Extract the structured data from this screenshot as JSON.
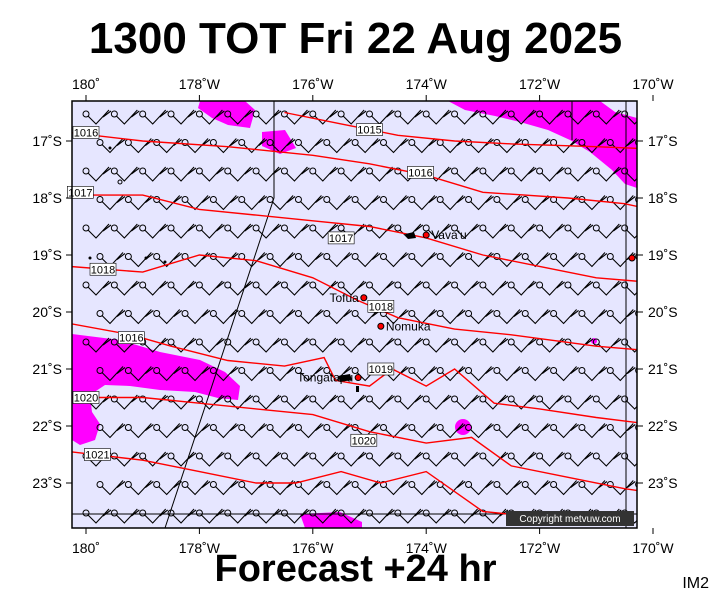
{
  "title": "1300 TOT Fri 22 Aug 2025",
  "subtitle": "Forecast +24 hr",
  "corner_code": "IM2",
  "copyright": "Copyright metvuw.com",
  "colors": {
    "background": "#e6e6ff",
    "rain": "#ff00ff",
    "isobar": "#ff0000",
    "frame": "#000000"
  },
  "axes": {
    "lon_ticks": [
      {
        "lon": -180,
        "label": "180˚"
      },
      {
        "lon": -178,
        "label": "178˚W"
      },
      {
        "lon": -176,
        "label": "176˚W"
      },
      {
        "lon": -174,
        "label": "174˚W"
      },
      {
        "lon": -172,
        "label": "172˚W"
      },
      {
        "lon": -170,
        "label": "170˚W"
      }
    ],
    "lat_ticks": [
      {
        "lat": -17,
        "label": "17˚S"
      },
      {
        "lat": -18,
        "label": "18˚S"
      },
      {
        "lat": -19,
        "label": "19˚S"
      },
      {
        "lat": -20,
        "label": "20˚S"
      },
      {
        "lat": -21,
        "label": "21˚S"
      },
      {
        "lat": -22,
        "label": "22˚S"
      },
      {
        "lat": -23,
        "label": "23˚S"
      }
    ]
  },
  "places": [
    {
      "name": "Vava'u",
      "lon": -174.0,
      "lat": -18.65
    },
    {
      "name": "Tofua",
      "lon": -175.1,
      "lat": -19.75
    },
    {
      "name": "Nomuka",
      "lon": -174.8,
      "lat": -20.25
    },
    {
      "name": "Tongatapu",
      "lon": -175.2,
      "lat": -21.15
    }
  ],
  "isobars": [
    {
      "label": "1015",
      "label_lon": -175.0,
      "label_lat": -16.8,
      "points": [
        [
          -176.5,
          -16.5
        ],
        [
          -175.5,
          -16.7
        ],
        [
          -174.5,
          -16.9
        ],
        [
          -173.5,
          -17.0
        ],
        [
          -172.5,
          -17.05
        ],
        [
          -171.0,
          -17.1
        ],
        [
          -169.8,
          -17.15
        ]
      ]
    },
    {
      "label": "1016",
      "label_lon": -180.0,
      "label_lat": -16.85,
      "points": [
        [
          -180.3,
          -16.85
        ],
        [
          -179.0,
          -17.0
        ],
        [
          -177.5,
          -17.1
        ],
        [
          -176.0,
          -17.25
        ],
        [
          -175.0,
          -17.4
        ],
        [
          -174.0,
          -17.6
        ],
        [
          -173.0,
          -17.9
        ],
        [
          -171.5,
          -18.0
        ],
        [
          -170.5,
          -18.1
        ],
        [
          -169.8,
          -18.25
        ]
      ]
    },
    {
      "label": "1016",
      "label_lon": -174.1,
      "label_lat": -17.55,
      "points": []
    },
    {
      "label": "1017",
      "label_lon": -180.1,
      "label_lat": -17.9,
      "points": [
        [
          -180.3,
          -17.95
        ],
        [
          -179.0,
          -17.95
        ],
        [
          -178.0,
          -18.2
        ],
        [
          -177.0,
          -18.3
        ],
        [
          -176.0,
          -18.4
        ],
        [
          -175.0,
          -18.5
        ],
        [
          -174.0,
          -18.7
        ],
        [
          -173.0,
          -19.0
        ],
        [
          -172.0,
          -19.2
        ],
        [
          -171.0,
          -19.4
        ],
        [
          -169.8,
          -19.5
        ]
      ]
    },
    {
      "label": "1017",
      "label_lon": -175.5,
      "label_lat": -18.7,
      "points": []
    },
    {
      "label": "1018",
      "label_lon": -179.7,
      "label_lat": -19.25,
      "points": [
        [
          -180.3,
          -19.2
        ],
        [
          -179.0,
          -19.3
        ],
        [
          -178.0,
          -19.0
        ],
        [
          -177.0,
          -19.1
        ],
        [
          -176.0,
          -19.4
        ],
        [
          -175.2,
          -19.8
        ],
        [
          -174.5,
          -20.1
        ],
        [
          -173.5,
          -20.3
        ],
        [
          -172.5,
          -20.4
        ],
        [
          -171.0,
          -20.6
        ],
        [
          -169.8,
          -20.7
        ]
      ]
    },
    {
      "label": "1018",
      "label_lon": -174.8,
      "label_lat": -19.9,
      "points": []
    },
    {
      "label": "1019",
      "label_lon": -174.8,
      "label_lat": -21.0,
      "points": [
        [
          -180.3,
          -20.2
        ],
        [
          -179.2,
          -20.4
        ],
        [
          -178.5,
          -20.6
        ],
        [
          -177.5,
          -20.85
        ],
        [
          -176.5,
          -20.95
        ],
        [
          -175.8,
          -20.8
        ],
        [
          -175.6,
          -21.2
        ],
        [
          -175.0,
          -21.3
        ],
        [
          -174.6,
          -21.0
        ],
        [
          -174.0,
          -21.3
        ],
        [
          -173.5,
          -21.0
        ],
        [
          -172.8,
          -21.6
        ],
        [
          -172.0,
          -21.7
        ],
        [
          -171.0,
          -21.85
        ],
        [
          -169.8,
          -22.0
        ]
      ]
    },
    {
      "label": "1016",
      "label_lon": -179.2,
      "label_lat": -20.45,
      "points": []
    },
    {
      "label": "1020",
      "label_lon": -180.0,
      "label_lat": -21.5,
      "points": [
        [
          -180.3,
          -21.5
        ],
        [
          -179.0,
          -21.5
        ],
        [
          -178.0,
          -21.6
        ],
        [
          -177.0,
          -21.7
        ],
        [
          -176.0,
          -21.8
        ],
        [
          -175.0,
          -22.1
        ],
        [
          -174.0,
          -22.3
        ],
        [
          -173.2,
          -22.2
        ],
        [
          -172.5,
          -22.7
        ],
        [
          -171.5,
          -22.9
        ],
        [
          -170.5,
          -23.1
        ],
        [
          -169.8,
          -23.2
        ]
      ]
    },
    {
      "label": "1020",
      "label_lon": -175.1,
      "label_lat": -22.25,
      "points": []
    },
    {
      "label": "1021",
      "label_lon": -179.8,
      "label_lat": -22.5,
      "points": [
        [
          -180.3,
          -22.45
        ],
        [
          -179.0,
          -22.6
        ],
        [
          -178.0,
          -22.8
        ],
        [
          -177.0,
          -23.0
        ],
        [
          -176.3,
          -23.0
        ],
        [
          -175.5,
          -22.8
        ],
        [
          -174.8,
          -23.0
        ],
        [
          -174.0,
          -22.8
        ],
        [
          -173.0,
          -23.5
        ],
        [
          -172.0,
          -23.6
        ],
        [
          -171.0,
          -23.7
        ]
      ]
    }
  ]
}
